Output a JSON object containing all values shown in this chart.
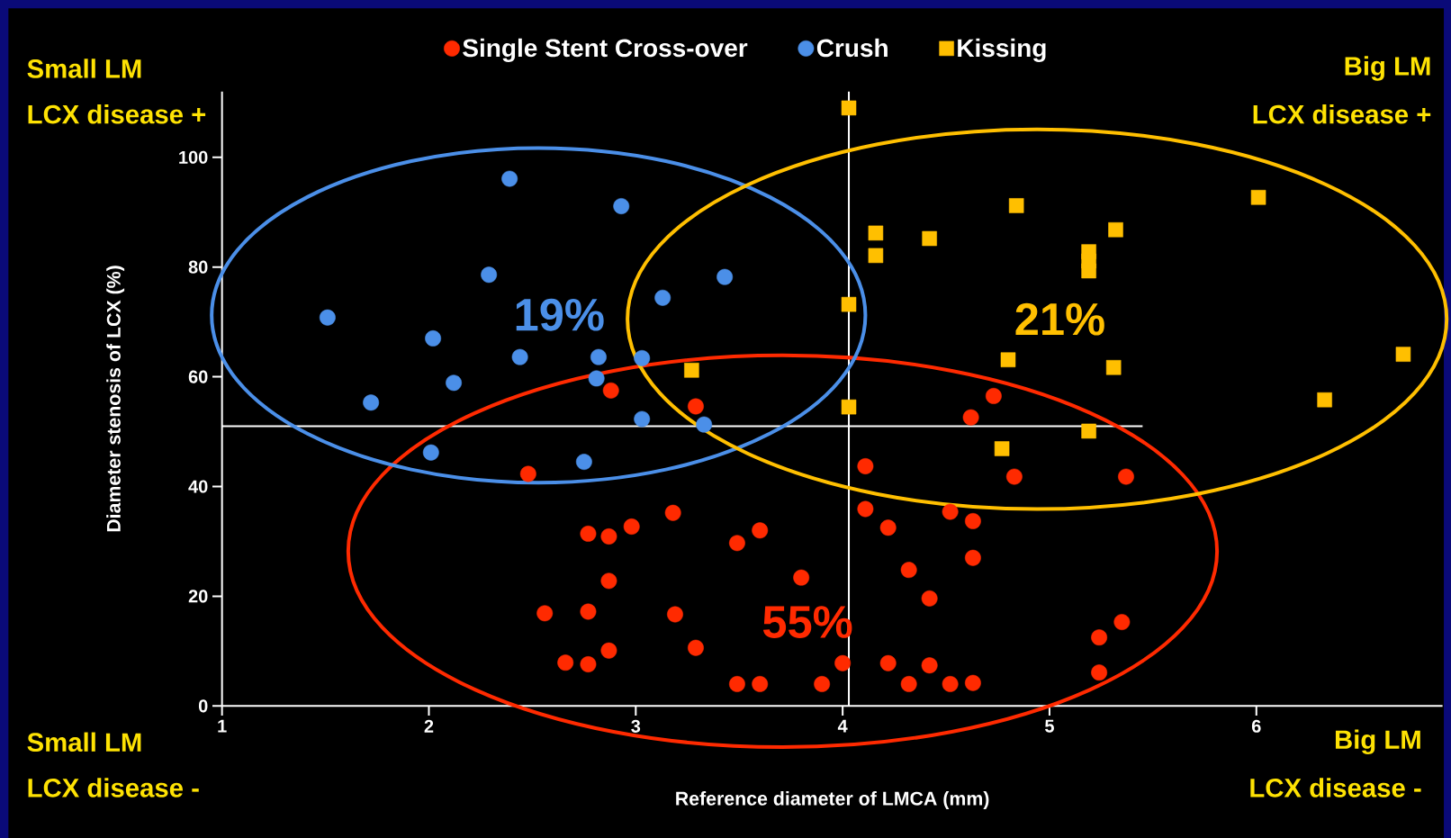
{
  "chart_data": {
    "type": "scatter",
    "xlabel": "Reference diameter of LMCA (mm)",
    "ylabel": "Diameter stenosis of LCX (%)",
    "xlim": [
      1,
      6.9
    ],
    "ylim": [
      0,
      112
    ],
    "xticks": [
      1,
      2,
      3,
      4,
      5,
      6
    ],
    "yticks": [
      0,
      20,
      40,
      60,
      80,
      100
    ],
    "legend": "top",
    "series": [
      {
        "name": "Single Stent Cross-over",
        "color": "#ff2a00",
        "marker": "circle",
        "x": [
          2.88,
          3.29,
          2.48,
          2.56,
          2.66,
          2.77,
          2.77,
          2.77,
          2.87,
          2.87,
          2.87,
          2.98,
          3.18,
          3.19,
          3.29,
          3.49,
          3.49,
          3.6,
          3.6,
          3.8,
          3.9,
          4.0,
          4.11,
          4.11,
          4.22,
          4.22,
          4.32,
          4.32,
          4.42,
          4.42,
          4.52,
          4.52,
          4.62,
          4.63,
          4.63,
          4.63,
          4.73,
          4.83,
          5.24,
          5.24,
          5.35,
          5.37
        ],
        "values": [
          57.5,
          54.6,
          42.3,
          16.9,
          7.9,
          31.4,
          17.2,
          7.6,
          30.9,
          22.8,
          10.1,
          32.7,
          35.2,
          16.7,
          10.6,
          29.7,
          4,
          32,
          4,
          23.4,
          4,
          7.8,
          43.7,
          35.9,
          32.5,
          7.8,
          24.8,
          4,
          19.6,
          7.4,
          35.4,
          4,
          52.6,
          33.7,
          27,
          4.2,
          56.5,
          41.8,
          12.5,
          6.1,
          15.3,
          41.8
        ]
      },
      {
        "name": "Crush",
        "color": "#4b8fe8",
        "marker": "circle",
        "x": [
          1.51,
          1.72,
          2.02,
          2.01,
          2.12,
          2.29,
          2.39,
          2.44,
          2.75,
          2.82,
          2.81,
          2.93,
          3.03,
          3.03,
          3.13,
          3.33,
          3.43
        ],
        "values": [
          70.8,
          55.3,
          67,
          46.2,
          58.9,
          78.6,
          96.1,
          63.6,
          44.5,
          63.6,
          59.7,
          91.1,
          63.4,
          52.3,
          74.4,
          51.3,
          78.2
        ]
      },
      {
        "name": "Kissing",
        "color": "#ffbf00",
        "marker": "square",
        "x": [
          4.03,
          3.27,
          4.03,
          4.03,
          4.16,
          4.16,
          4.42,
          4.84,
          4.8,
          4.77,
          5.19,
          5.19,
          5.19,
          5.32,
          5.31,
          5.19,
          6.01,
          6.33,
          6.71
        ],
        "values": [
          109,
          61.2,
          73.2,
          54.5,
          86.2,
          82.1,
          85.2,
          91.2,
          63.1,
          46.9,
          82.8,
          81.1,
          79.3,
          86.8,
          61.7,
          50.1,
          92.7,
          55.8,
          64.1
        ]
      }
    ],
    "ref_lines": [
      {
        "axis": "x",
        "value": 4.03,
        "color": "#ffffff"
      },
      {
        "axis": "y",
        "value": 51,
        "color": "#ffffff"
      }
    ],
    "annotations": [
      "Small LM",
      "LCX disease +",
      "Big LM",
      "LCX disease +",
      "Small LM",
      "LCX disease -",
      "Big LM",
      "LCX disease -",
      "55%",
      "19%",
      "21%"
    ]
  }
}
